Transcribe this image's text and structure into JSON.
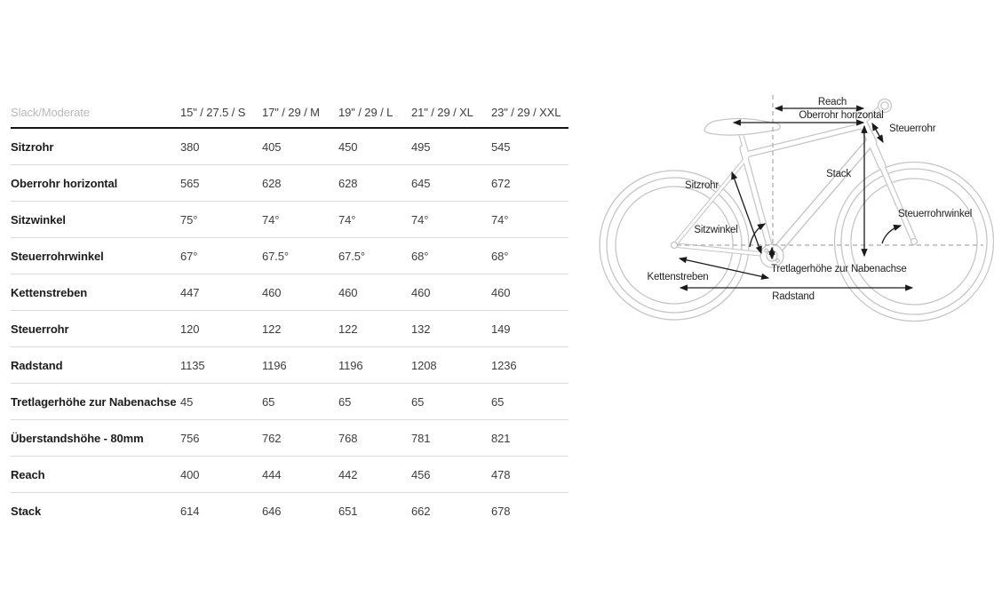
{
  "chart_data": {
    "type": "table",
    "corner_label": "Slack/Moderate",
    "columns": [
      "15\" / 27.5 / S",
      "17\" / 29 / M",
      "19\" / 29 / L",
      "21\" / 29 / XL",
      "23\" / 29 / XXL"
    ],
    "rows": [
      {
        "label": "Sitzrohr",
        "values": [
          "380",
          "405",
          "450",
          "495",
          "545"
        ]
      },
      {
        "label": "Oberrohr horizontal",
        "values": [
          "565",
          "628",
          "628",
          "645",
          "672"
        ]
      },
      {
        "label": "Sitzwinkel",
        "values": [
          "75°",
          "74°",
          "74°",
          "74°",
          "74°"
        ]
      },
      {
        "label": "Steuerrohrwinkel",
        "values": [
          "67°",
          "67.5°",
          "67.5°",
          "68°",
          "68°"
        ]
      },
      {
        "label": "Kettenstreben",
        "values": [
          "447",
          "460",
          "460",
          "460",
          "460"
        ]
      },
      {
        "label": "Steuerrohr",
        "values": [
          "120",
          "122",
          "122",
          "132",
          "149"
        ]
      },
      {
        "label": "Radstand",
        "values": [
          "1135",
          "1196",
          "1196",
          "1208",
          "1236"
        ]
      },
      {
        "label": "Tretlagerhöhe zur Nabenachse",
        "values": [
          "45",
          "65",
          "65",
          "65",
          "65"
        ]
      },
      {
        "label": "Überstandshöhe - 80mm",
        "values": [
          "756",
          "762",
          "768",
          "781",
          "821"
        ]
      },
      {
        "label": "Reach",
        "values": [
          "400",
          "444",
          "442",
          "456",
          "478"
        ]
      },
      {
        "label": "Stack",
        "values": [
          "614",
          "646",
          "651",
          "662",
          "678"
        ]
      }
    ]
  },
  "diagram": {
    "labels": {
      "reach": "Reach",
      "oberrohr": "Oberrohr horizontal",
      "steuerrohr": "Steuerrohr",
      "stack": "Stack",
      "sitzrohr": "Sitzrohr",
      "sitzwinkel": "Sitzwinkel",
      "steuerrohrwinkel": "Steuerrohrwinkel",
      "tretlagerhoehe": "Tretlagerhöhe zur Nabenachse",
      "kettenstreben": "Kettenstreben",
      "radstand": "Radstand"
    },
    "colors": {
      "bike_outline": "#c6c6c6",
      "annotation": "#1a1a1a",
      "dashed_line": "#a8a8a8"
    }
  }
}
